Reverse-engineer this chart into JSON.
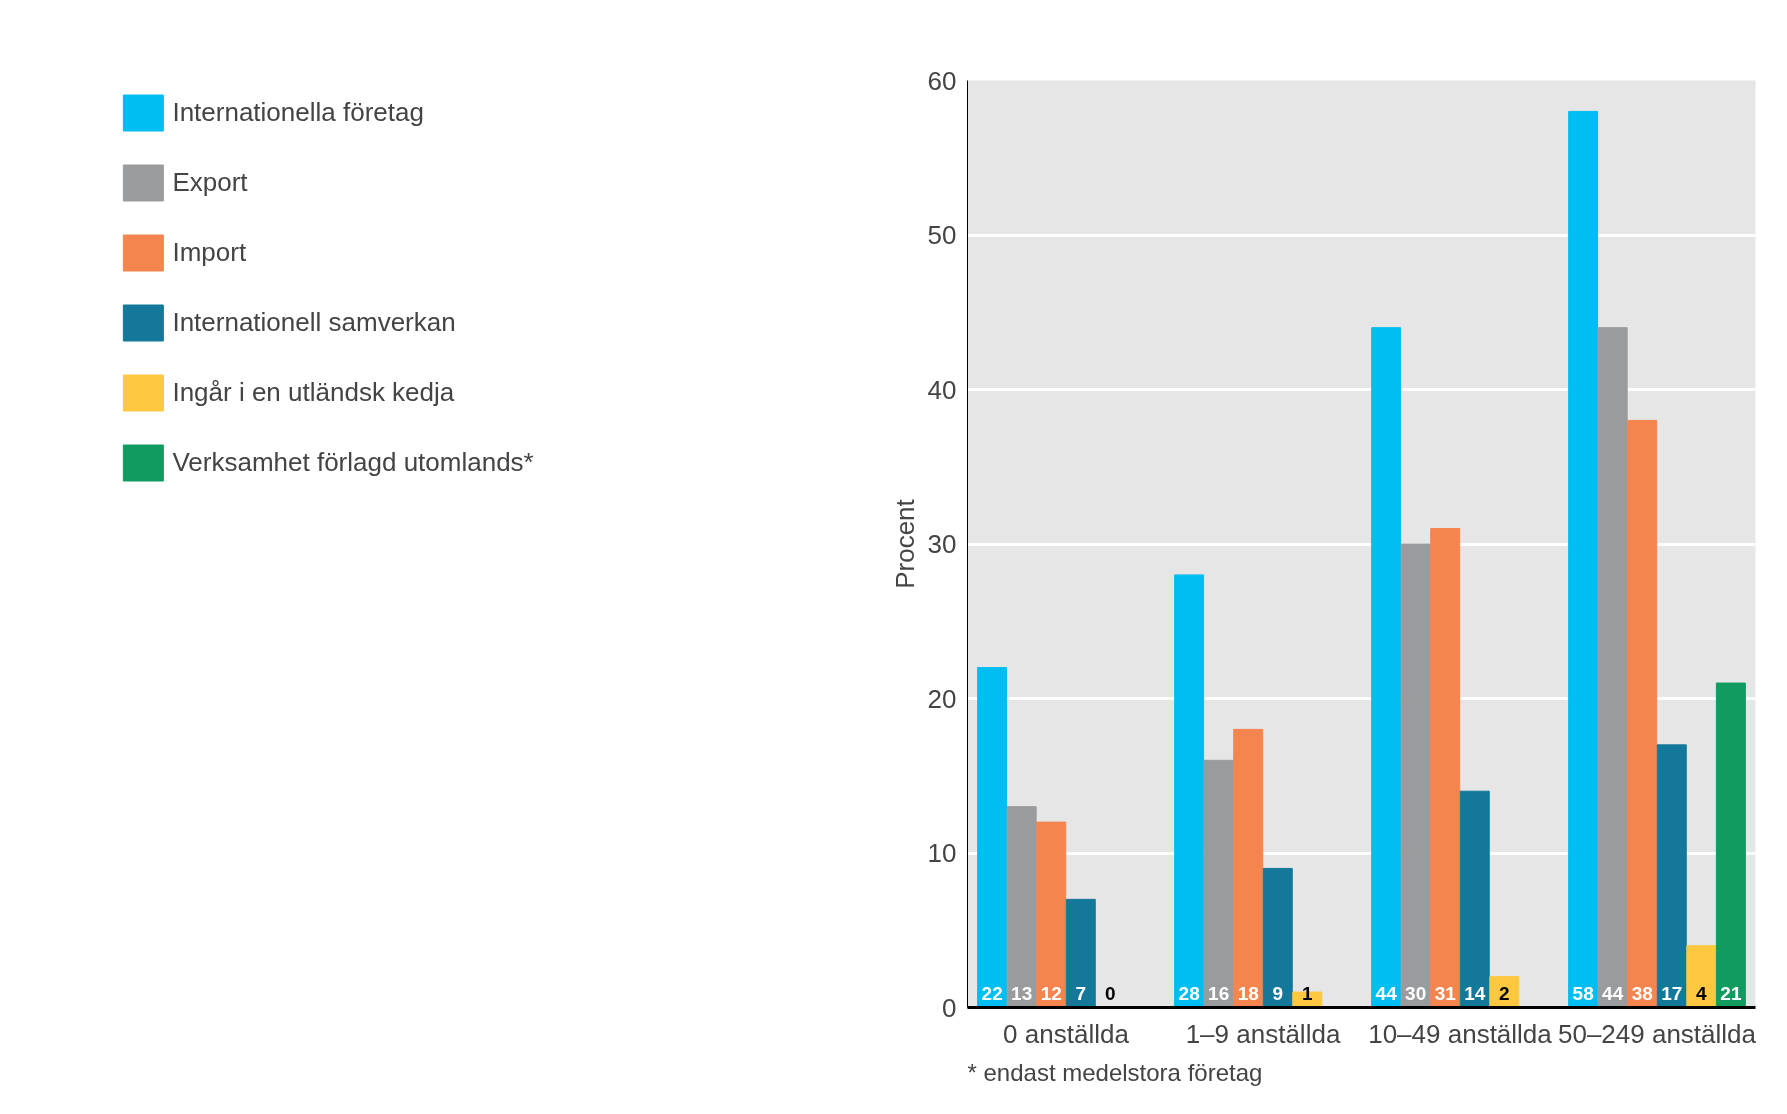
{
  "chart_data": {
    "type": "bar",
    "ylabel": "Procent",
    "categories": [
      "0 anställda",
      "1–9 anställda",
      "10–49 anställda",
      "50–249 anställda"
    ],
    "series": [
      {
        "name": "Internationella företag",
        "color": "#00bdf2",
        "values": [
          22,
          28,
          44,
          58
        ]
      },
      {
        "name": "Export",
        "color": "#9a9b9d",
        "values": [
          13,
          16,
          30,
          44
        ]
      },
      {
        "name": "Import",
        "color": "#f4854f",
        "values": [
          12,
          18,
          31,
          38
        ]
      },
      {
        "name": "Internationell samverkan",
        "color": "#13789a",
        "values": [
          7,
          9,
          14,
          17
        ]
      },
      {
        "name": "Ingår i en utländsk kedja",
        "color": "#fdc840",
        "values": [
          0,
          1,
          2,
          4
        ]
      },
      {
        "name": "Verksamhet förlagd utomlands*",
        "color": "#119b61",
        "values": [
          null,
          null,
          null,
          21
        ]
      }
    ],
    "ylim": [
      0,
      60
    ],
    "yticks": [
      0,
      10,
      20,
      30,
      40,
      50,
      60
    ],
    "grid": "y",
    "legend": "left",
    "data_labels": true,
    "annotations": [
      "* endast medelstora företag"
    ]
  }
}
